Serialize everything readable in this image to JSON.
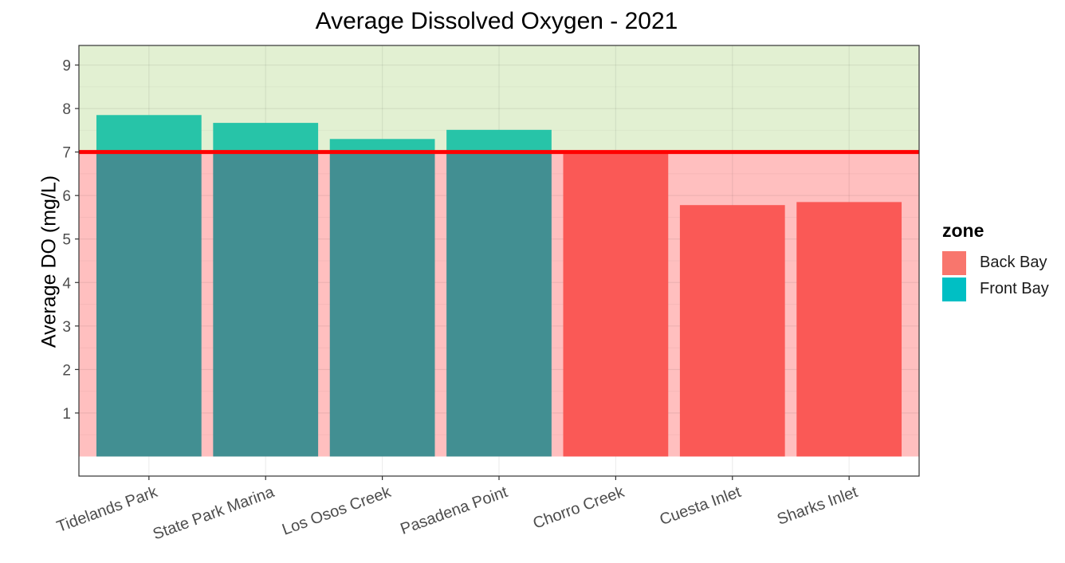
{
  "chart_data": {
    "type": "bar",
    "title": "Average Dissolved Oxygen - 2021",
    "xlabel": "",
    "ylabel": "Average DO (mg/L)",
    "categories": [
      "Tidelands Park",
      "State Park Marina",
      "Los Osos Creek",
      "Pasadena Point",
      "Chorro Creek",
      "Cuesta Inlet",
      "Sharks Inlet"
    ],
    "values": [
      7.85,
      7.67,
      7.3,
      7.51,
      7.0,
      5.78,
      5.85
    ],
    "zone": [
      "Front Bay",
      "Front Bay",
      "Front Bay",
      "Front Bay",
      "Back Bay",
      "Back Bay",
      "Back Bay"
    ],
    "ylim": [
      -0.45,
      9.45
    ],
    "yticks": [
      1,
      2,
      3,
      4,
      5,
      6,
      7,
      8,
      9
    ],
    "threshold": 7,
    "grid": true,
    "legend": {
      "title": "zone",
      "position": "right",
      "items": [
        {
          "label": "Back Bay",
          "color": "#F8766D"
        },
        {
          "label": "Front Bay",
          "color": "#00BFC4"
        }
      ]
    },
    "colors": {
      "above_band": "#e2f0d2",
      "below_band": "#ffbfbf",
      "front_bay_below": "#428f92",
      "front_bay_above": "#27c4a8",
      "back_bay": "#fa5956",
      "threshold_line": "#ff0000"
    }
  }
}
